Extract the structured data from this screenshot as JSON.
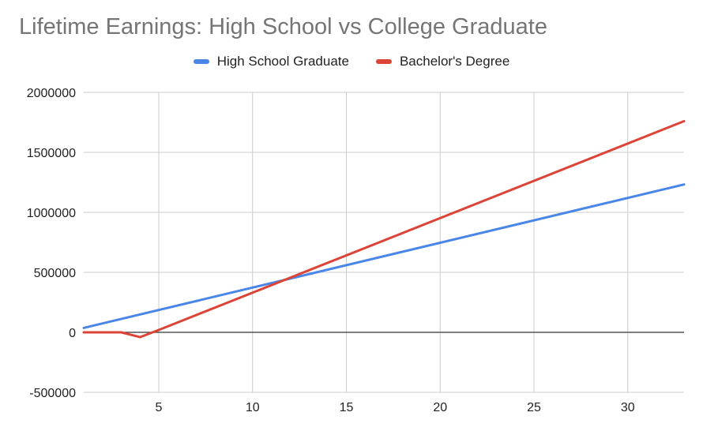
{
  "colors": {
    "high_school": "#4a86e8",
    "bachelors": "#db4437",
    "grid": "#cccccc",
    "zero_line": "#333333",
    "title": "#757575"
  },
  "chart_data": {
    "type": "line",
    "title": "Lifetime Earnings: High School vs College Graduate",
    "xlabel": "",
    "ylabel": "",
    "xlim": [
      1,
      33
    ],
    "ylim": [
      -500000,
      2000000
    ],
    "x_ticks": [
      5,
      10,
      15,
      20,
      25,
      30
    ],
    "y_ticks": [
      -500000,
      0,
      500000,
      1000000,
      1500000,
      2000000
    ],
    "grid": true,
    "legend_position": "top",
    "series": [
      {
        "name": "High School Graduate",
        "color": "#4a86e8",
        "x": [
          1,
          33
        ],
        "values": [
          37000,
          1232000
        ]
      },
      {
        "name": "Bachelor's Degree",
        "color": "#db4437",
        "x": [
          1,
          3,
          4,
          5,
          33
        ],
        "values": [
          0,
          0,
          -40000,
          20000,
          1760000
        ]
      }
    ]
  }
}
